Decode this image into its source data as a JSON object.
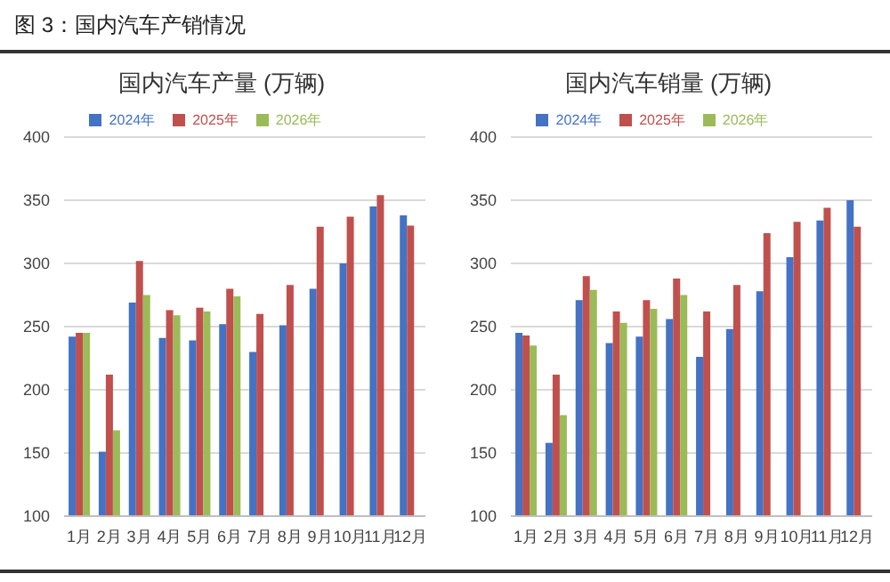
{
  "chart_data": [
    {
      "type": "bar",
      "title": "国内汽车产量 (万辆)",
      "annotations": [
        "图 3：国内汽车产销情况"
      ],
      "categories": [
        "1月",
        "2月",
        "3月",
        "4月",
        "5月",
        "6月",
        "7月",
        "8月",
        "9月",
        "10月",
        "11月",
        "12月"
      ],
      "series": [
        {
          "name": "2024年",
          "color": "#4472c4",
          "values": [
            242,
            151,
            269,
            241,
            239,
            252,
            230,
            251,
            280,
            300,
            345,
            338
          ]
        },
        {
          "name": "2025年",
          "color": "#c0504d",
          "values": [
            245,
            212,
            302,
            263,
            265,
            280,
            260,
            283,
            329,
            337,
            354,
            330
          ]
        },
        {
          "name": "2026年",
          "color": "#9bbb59",
          "values": [
            245,
            168,
            275,
            259,
            262,
            274,
            null,
            null,
            null,
            null,
            null,
            null
          ]
        }
      ],
      "ylim": [
        100,
        400
      ],
      "yticks": [
        100,
        150,
        200,
        250,
        300,
        350,
        400
      ],
      "grid": "y",
      "legend": "top"
    },
    {
      "type": "bar",
      "title": "国内汽车销量 (万辆)",
      "categories": [
        "1月",
        "2月",
        "3月",
        "4月",
        "5月",
        "6月",
        "7月",
        "8月",
        "9月",
        "10月",
        "11月",
        "12月"
      ],
      "series": [
        {
          "name": "2024年",
          "color": "#4472c4",
          "values": [
            245,
            158,
            271,
            237,
            242,
            256,
            226,
            248,
            278,
            305,
            334,
            350
          ]
        },
        {
          "name": "2025年",
          "color": "#c0504d",
          "values": [
            243,
            212,
            290,
            262,
            271,
            288,
            262,
            283,
            324,
            333,
            344,
            329
          ]
        },
        {
          "name": "2026年",
          "color": "#9bbb59",
          "values": [
            235,
            180,
            279,
            253,
            264,
            275,
            null,
            null,
            null,
            null,
            null,
            null
          ]
        }
      ],
      "ylim": [
        100,
        400
      ],
      "yticks": [
        100,
        150,
        200,
        250,
        300,
        350,
        400
      ],
      "grid": "y",
      "legend": "top"
    }
  ]
}
